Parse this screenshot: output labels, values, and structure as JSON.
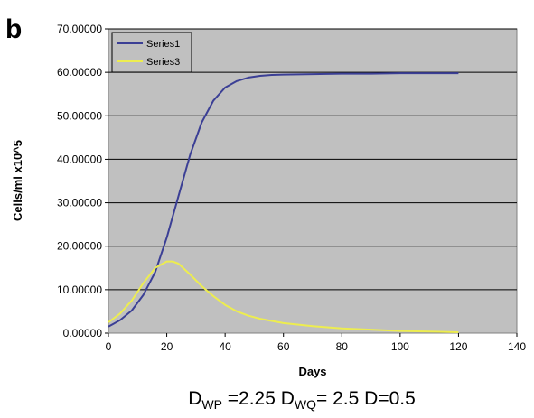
{
  "panel_label": "b",
  "chart_data": {
    "type": "line",
    "xlabel": "Days",
    "ylabel": "Cells/ml x10^5",
    "xlim": [
      0,
      140
    ],
    "ylim": [
      0,
      70
    ],
    "x_ticks": [
      "0",
      "20",
      "40",
      "60",
      "80",
      "100",
      "120",
      "140"
    ],
    "y_ticks": [
      "0.00000",
      "10.00000",
      "20.00000",
      "30.00000",
      "40.00000",
      "50.00000",
      "60.00000",
      "70.00000"
    ],
    "grid": true,
    "legend_position": "top-left",
    "plot_background": "#c0c0c0",
    "series": [
      {
        "name": "Series1",
        "color": "#3b3f95",
        "x": [
          0,
          4,
          8,
          12,
          16,
          20,
          24,
          28,
          32,
          36,
          40,
          44,
          48,
          52,
          56,
          60,
          70,
          80,
          90,
          100,
          110,
          120
        ],
        "y": [
          1.5,
          3.0,
          5.2,
          8.8,
          14.0,
          22.0,
          31.5,
          41.0,
          48.5,
          53.5,
          56.5,
          58.0,
          58.8,
          59.2,
          59.4,
          59.5,
          59.6,
          59.7,
          59.7,
          59.8,
          59.8,
          59.8
        ]
      },
      {
        "name": "Series3",
        "color": "#eded4f",
        "x": [
          0,
          4,
          8,
          12,
          16,
          20,
          22,
          24,
          28,
          32,
          36,
          40,
          44,
          48,
          52,
          56,
          60,
          70,
          80,
          90,
          100,
          110,
          120
        ],
        "y": [
          2.5,
          4.5,
          7.5,
          11.5,
          15.0,
          16.5,
          16.5,
          16.0,
          13.5,
          10.8,
          8.5,
          6.5,
          5.0,
          4.0,
          3.3,
          2.8,
          2.3,
          1.6,
          1.1,
          0.8,
          0.5,
          0.35,
          0.2
        ]
      }
    ]
  },
  "caption": {
    "prefix": "D",
    "sub1": "WP",
    "mid1": " =2.25 D",
    "sub2": "WQ",
    "mid2": "= 2.5 D=0.5"
  }
}
